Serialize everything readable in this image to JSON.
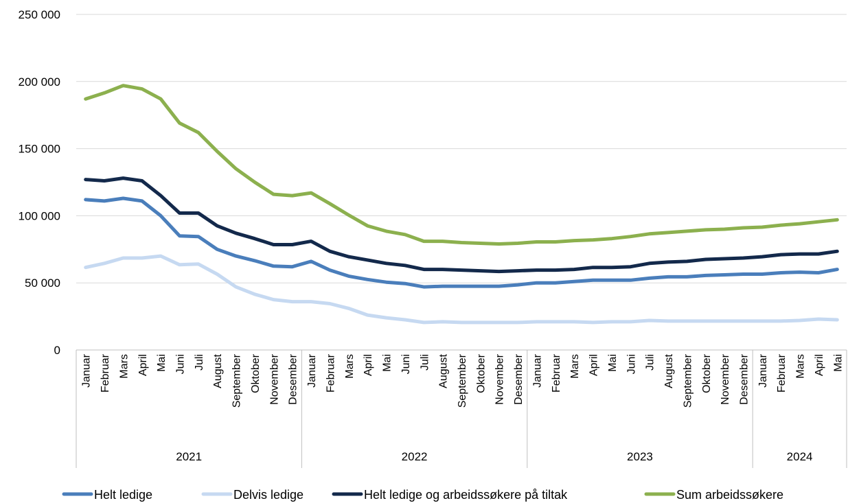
{
  "chart_data": {
    "type": "line",
    "y_ticks": [
      "0",
      "50 000",
      "100 000",
      "150 000",
      "200 000",
      "250 000"
    ],
    "ylim": [
      0,
      250000
    ],
    "grid": true,
    "legend_position": "bottom",
    "year_groups": [
      {
        "label": "2021",
        "count": 12
      },
      {
        "label": "2022",
        "count": 12
      },
      {
        "label": "2023",
        "count": 12
      },
      {
        "label": "2024",
        "count": 5
      }
    ],
    "categories": [
      "Januar",
      "Februar",
      "Mars",
      "April",
      "Mai",
      "Juni",
      "Juli",
      "August",
      "September",
      "Oktober",
      "November",
      "Desember",
      "Januar",
      "Februar",
      "Mars",
      "April",
      "Mai",
      "Juni",
      "Juli",
      "August",
      "September",
      "Oktober",
      "November",
      "Desember",
      "Januar",
      "Februar",
      "Mars",
      "April",
      "Mai",
      "Juni",
      "Juli",
      "August",
      "September",
      "Oktober",
      "November",
      "Desember",
      "Januar",
      "Februar",
      "Mars",
      "April",
      "Mai"
    ],
    "series": [
      {
        "name": "Helt ledige",
        "color": "#4a7ebb",
        "values": [
          112000,
          111000,
          113000,
          111000,
          100000,
          85000,
          84500,
          75000,
          70000,
          66500,
          62500,
          62000,
          66000,
          59500,
          55000,
          52500,
          50500,
          49500,
          47000,
          47500,
          47500,
          47500,
          47500,
          48500,
          50000,
          50000,
          51000,
          52000,
          52000,
          52000,
          53500,
          54500,
          54500,
          55500,
          56000,
          56500,
          56500,
          57500,
          58000,
          57500,
          60000
        ]
      },
      {
        "name": "Delvis ledige",
        "color": "#c6d9f1",
        "values": [
          61500,
          64500,
          68500,
          68500,
          70000,
          63500,
          64000,
          56500,
          47000,
          41500,
          37500,
          36000,
          36000,
          34500,
          31000,
          26000,
          24000,
          22500,
          20500,
          21000,
          20500,
          20500,
          20500,
          20500,
          21000,
          21000,
          21000,
          20500,
          21000,
          21000,
          22000,
          21500,
          21500,
          21500,
          21500,
          21500,
          21500,
          21500,
          22000,
          23000,
          22500
        ]
      },
      {
        "name": "Helt ledige og arbeidssøkere på tiltak",
        "color": "#13294b",
        "values": [
          127000,
          126000,
          128000,
          126000,
          115000,
          102000,
          102000,
          92500,
          87000,
          83000,
          78500,
          78500,
          81000,
          73500,
          69500,
          67000,
          64500,
          63000,
          60000,
          60000,
          59500,
          59000,
          58500,
          59000,
          59500,
          59500,
          60000,
          61500,
          61500,
          62000,
          64500,
          65500,
          66000,
          67500,
          68000,
          68500,
          69500,
          71000,
          71500,
          71500,
          73500
        ]
      },
      {
        "name": "Sum arbeidssøkere",
        "color": "#8cb04e",
        "values": [
          187000,
          191500,
          197000,
          194500,
          187000,
          169000,
          162000,
          148000,
          135000,
          125000,
          116000,
          115000,
          117000,
          109000,
          100500,
          92500,
          88500,
          86000,
          81000,
          81000,
          80000,
          79500,
          79000,
          79500,
          80500,
          80500,
          81500,
          82000,
          83000,
          84500,
          86500,
          87500,
          88500,
          89500,
          90000,
          91000,
          91500,
          93000,
          94000,
          95500,
          97000
        ]
      }
    ]
  }
}
